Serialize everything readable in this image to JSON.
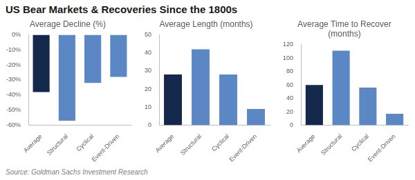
{
  "title": "US Bear Markets & Recoveries Since the 1800s",
  "source": "Source: Goldman Sachs Investment Research",
  "chart_data": [
    {
      "type": "bar",
      "title": "Average Decline (%)",
      "categories": [
        "Average",
        "Structural",
        "Cyclical",
        "Event-Driven"
      ],
      "values": [
        -38,
        -57,
        -32,
        -28
      ],
      "colors": [
        "#14284b",
        "#5b87c5",
        "#5b87c5",
        "#5b87c5"
      ],
      "ylim": [
        -60,
        0
      ],
      "yticks": [
        {
          "value": -60,
          "label": "-60%"
        },
        {
          "value": -50,
          "label": "-50%"
        },
        {
          "value": -40,
          "label": "-40%"
        },
        {
          "value": -30,
          "label": "-30%"
        },
        {
          "value": -20,
          "label": "-20%"
        },
        {
          "value": -10,
          "label": "-10%"
        },
        {
          "value": 0,
          "label": "0%"
        }
      ],
      "grid": false
    },
    {
      "type": "bar",
      "title": "Average Length (months)",
      "categories": [
        "Average",
        "Structural",
        "Cyclical",
        "Event-Driven"
      ],
      "values": [
        28,
        42,
        28,
        9
      ],
      "colors": [
        "#14284b",
        "#5b87c5",
        "#5b87c5",
        "#5b87c5"
      ],
      "ylim": [
        0,
        50
      ],
      "yticks": [
        0,
        10,
        20,
        30,
        40,
        50
      ],
      "grid": false
    },
    {
      "type": "bar",
      "title": "Average Time to Recover (months)",
      "categories": [
        "Average",
        "Structural",
        "Cyclical",
        "Event-Driven"
      ],
      "values": [
        60,
        111,
        56,
        17
      ],
      "colors": [
        "#14284b",
        "#5b87c5",
        "#5b87c5",
        "#5b87c5"
      ],
      "ylim": [
        0,
        120
      ],
      "yticks": [
        0,
        20,
        40,
        60,
        80,
        100,
        120
      ],
      "grid": false
    }
  ]
}
